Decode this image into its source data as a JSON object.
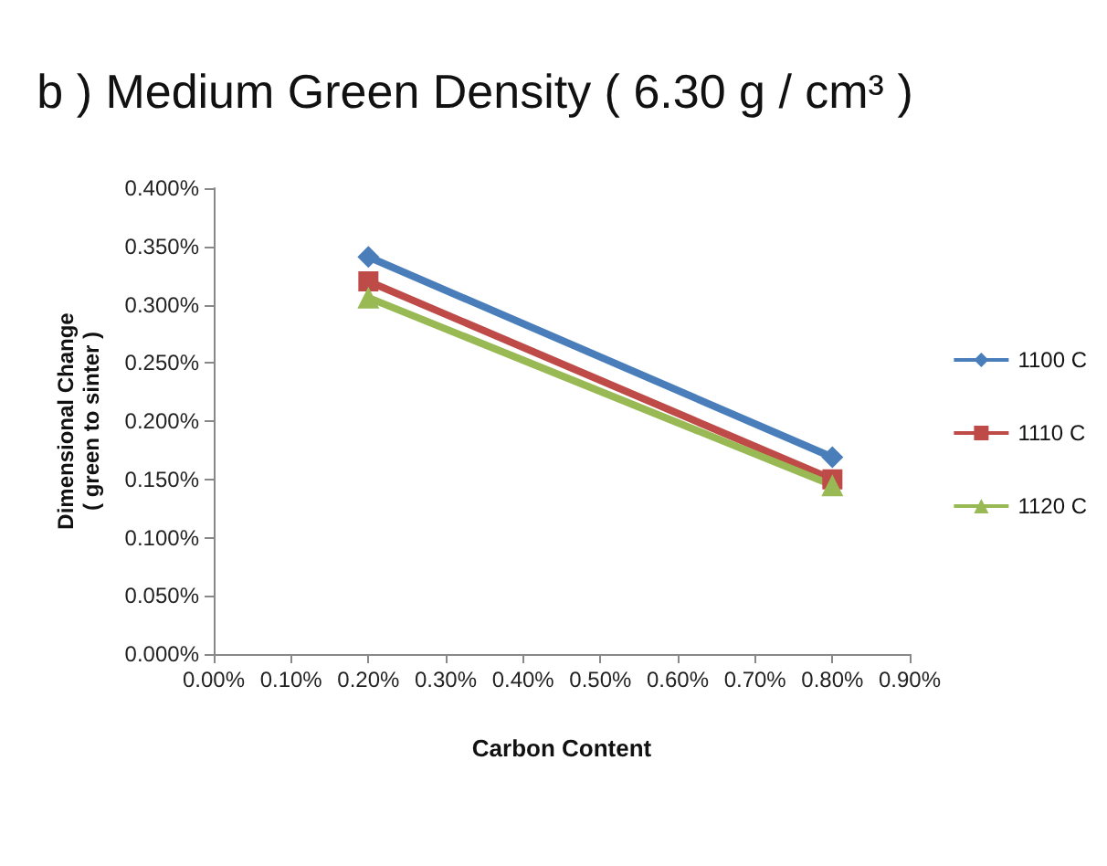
{
  "chart_data": {
    "type": "line",
    "title": "b ) Medium Green Density ( 6.30 g / cm³ )",
    "xlabel": "Carbon Content",
    "ylabel": "Dimensional Change\n( green to sinter )",
    "x": [
      0.2,
      0.8
    ],
    "series": [
      {
        "name": "1100 C",
        "color": "#4a7ebb",
        "values": [
          0.341,
          0.169
        ],
        "marker": "diamond"
      },
      {
        "name": "1110 C",
        "color": "#be4b48",
        "values": [
          0.32,
          0.15
        ],
        "marker": "square"
      },
      {
        "name": "1120 C",
        "color": "#98b954",
        "values": [
          0.306,
          0.145
        ],
        "marker": "triangle"
      }
    ],
    "xlim": [
      0,
      0.9
    ],
    "xticks": [
      {
        "value": 0,
        "label": "0.00%"
      },
      {
        "value": 0.1,
        "label": "0.10%"
      },
      {
        "value": 0.2,
        "label": "0.20%"
      },
      {
        "value": 0.3,
        "label": "0.30%"
      },
      {
        "value": 0.4,
        "label": "0.40%"
      },
      {
        "value": 0.5,
        "label": "0.50%"
      },
      {
        "value": 0.6,
        "label": "0.60%"
      },
      {
        "value": 0.7,
        "label": "0.70%"
      },
      {
        "value": 0.8,
        "label": "0.80%"
      },
      {
        "value": 0.9,
        "label": "0.90%"
      }
    ],
    "ylim": [
      0,
      0.4
    ],
    "yticks": [
      {
        "value": 0,
        "label": "0.000%"
      },
      {
        "value": 0.05,
        "label": "0.050%"
      },
      {
        "value": 0.1,
        "label": "0.100%"
      },
      {
        "value": 0.15,
        "label": "0.150%"
      },
      {
        "value": 0.2,
        "label": "0.200%"
      },
      {
        "value": 0.25,
        "label": "0.250%"
      },
      {
        "value": 0.3,
        "label": "0.300%"
      },
      {
        "value": 0.35,
        "label": "0.350%"
      },
      {
        "value": 0.4,
        "label": "0.400%"
      }
    ],
    "grid": false,
    "legend": "right",
    "line_style": "solid"
  }
}
